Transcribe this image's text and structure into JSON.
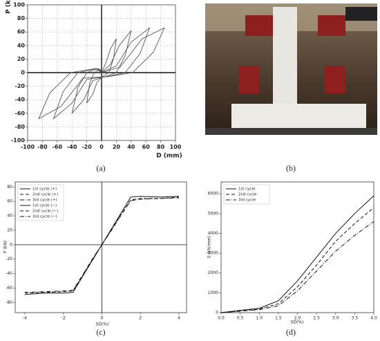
{
  "chart_data": [
    {
      "type": "line",
      "label": "(a)",
      "xlabel": "D (mm)",
      "ylabel": "P (kN)",
      "xlim": [
        -100,
        100
      ],
      "ylim": [
        -100,
        100
      ],
      "xticks": [
        -100,
        -80,
        -60,
        -40,
        -20,
        0,
        20,
        40,
        60,
        80,
        100
      ],
      "yticks": [
        -100,
        -80,
        -60,
        -40,
        -20,
        0,
        20,
        40,
        60,
        80,
        100
      ],
      "grid": true,
      "zero_axes": true,
      "series": [
        {
          "color": "#555555",
          "dash": "solid",
          "x": [
            0,
            6,
            12,
            20,
            16,
            10,
            2,
            -6,
            -12,
            -20,
            -16,
            -10,
            -2,
            0
          ],
          "values": [
            0,
            15,
            35,
            50,
            20,
            0,
            -5,
            -14,
            -32,
            -45,
            -15,
            0,
            5,
            0
          ]
        },
        {
          "color": "#555555",
          "dash": "solid",
          "x": [
            0,
            12,
            24,
            40,
            32,
            20,
            4,
            -12,
            -24,
            -40,
            -32,
            -20,
            -4,
            0
          ],
          "values": [
            0,
            12,
            40,
            62,
            25,
            0,
            -6,
            -12,
            -40,
            -60,
            -22,
            0,
            6,
            0
          ]
        },
        {
          "color": "#555555",
          "dash": "solid",
          "x": [
            0,
            20,
            40,
            65,
            52,
            32,
            6,
            -20,
            -40,
            -65,
            -52,
            -32,
            -6,
            0
          ],
          "values": [
            0,
            10,
            45,
            66,
            28,
            0,
            -6,
            -10,
            -45,
            -68,
            -28,
            0,
            6,
            0
          ]
        },
        {
          "color": "#555555",
          "dash": "solid",
          "x": [
            0,
            25,
            55,
            85,
            70,
            42,
            8,
            -25,
            -55,
            -85,
            -70,
            -42,
            -8,
            0
          ],
          "values": [
            0,
            8,
            50,
            66,
            30,
            0,
            -6,
            -8,
            -50,
            -68,
            -30,
            0,
            6,
            0
          ]
        }
      ]
    },
    {
      "type": "line",
      "label": "(c)",
      "xlabel": "SD(%)",
      "ylabel": "P (kN)",
      "xlim": [
        -4.5,
        4.4
      ],
      "ylim": [
        -94,
        87
      ],
      "xticks": [
        -4,
        -2,
        0,
        2,
        4
      ],
      "yticks": [
        -80,
        -60,
        -40,
        -20,
        0,
        20,
        40,
        60,
        80
      ],
      "grid": false,
      "zero_axes": true,
      "legend": "upper left",
      "series": [
        {
          "name": "1st cycle (+)",
          "color": "#111111",
          "dash": "solid",
          "x": [
            0,
            0.5,
            1,
            1.5,
            2,
            3,
            4
          ],
          "values": [
            0,
            22,
            44,
            66,
            67,
            66,
            67
          ]
        },
        {
          "name": "2nd cycle (+)",
          "color": "#111111",
          "dash": "dashed",
          "x": [
            0,
            0.5,
            1,
            1.5,
            2,
            3,
            4
          ],
          "values": [
            0,
            21,
            42,
            62,
            64,
            64,
            66
          ]
        },
        {
          "name": "3rd cycle (+)",
          "color": "#111111",
          "dash": "dashdot",
          "x": [
            0,
            0.5,
            1,
            1.5,
            2,
            3,
            4
          ],
          "values": [
            0,
            20,
            41,
            61,
            63,
            64,
            65
          ]
        },
        {
          "name": "1st cycle (−)",
          "color": "#111111",
          "dash": "solid",
          "x": [
            0,
            -0.5,
            -1,
            -1.5,
            -2,
            -3,
            -4
          ],
          "values": [
            0,
            -22,
            -44,
            -66,
            -67,
            -67,
            -69
          ]
        },
        {
          "name": "2nd cycle (−)",
          "color": "#111111",
          "dash": "dashed",
          "x": [
            0,
            -0.5,
            -1,
            -1.5,
            -2,
            -3,
            -4
          ],
          "values": [
            0,
            -21,
            -43,
            -64,
            -65,
            -66,
            -67
          ]
        },
        {
          "name": "3rd cycle (−)",
          "color": "#111111",
          "dash": "dashdot",
          "x": [
            0,
            -0.5,
            -1,
            -1.5,
            -2,
            -3,
            -4
          ],
          "values": [
            0,
            -20,
            -42,
            -63,
            -64,
            -65,
            -66
          ]
        }
      ]
    },
    {
      "type": "line",
      "label": "(d)",
      "xlabel": "SD(%)",
      "ylabel": "E (kN·mm)",
      "xlim": [
        0,
        4
      ],
      "ylim": [
        0,
        6600
      ],
      "xticks": [
        {
          "value": 0,
          "label": "0.0"
        },
        {
          "value": 0.5,
          "label": "0.5"
        },
        {
          "value": 1,
          "label": "1.0"
        },
        {
          "value": 1.5,
          "label": "1.5"
        },
        {
          "value": 2,
          "label": "2.0"
        },
        {
          "value": 2.5,
          "label": "2.5"
        },
        {
          "value": 3,
          "label": "3.0"
        },
        {
          "value": 3.5,
          "label": "3.5"
        },
        {
          "value": 4,
          "label": "4.0"
        }
      ],
      "yticks": [
        0,
        1000,
        2000,
        3000,
        4000,
        5000,
        6000
      ],
      "grid": false,
      "zero_axes": false,
      "legend": "upper left",
      "series": [
        {
          "name": "1st cycle",
          "color": "#111111",
          "dash": "solid",
          "x": [
            0,
            0.5,
            1,
            1.5,
            2,
            2.5,
            3,
            3.5,
            4
          ],
          "values": [
            0,
            120,
            220,
            600,
            1600,
            2800,
            4000,
            5000,
            5900
          ]
        },
        {
          "name": "2nd cycle",
          "color": "#111111",
          "dash": "dashed",
          "x": [
            0,
            0.5,
            1,
            1.5,
            2,
            2.5,
            3,
            3.5,
            4
          ],
          "values": [
            0,
            90,
            180,
            450,
            1300,
            2400,
            3600,
            4500,
            5300
          ]
        },
        {
          "name": "3rd cycle",
          "color": "#111111",
          "dash": "dashdot",
          "x": [
            0,
            0.5,
            1,
            1.5,
            2,
            2.5,
            3,
            3.5,
            4
          ],
          "values": [
            0,
            70,
            150,
            350,
            1100,
            2100,
            3100,
            3900,
            4600
          ]
        }
      ]
    }
  ],
  "photo": {
    "label": "(b)"
  }
}
